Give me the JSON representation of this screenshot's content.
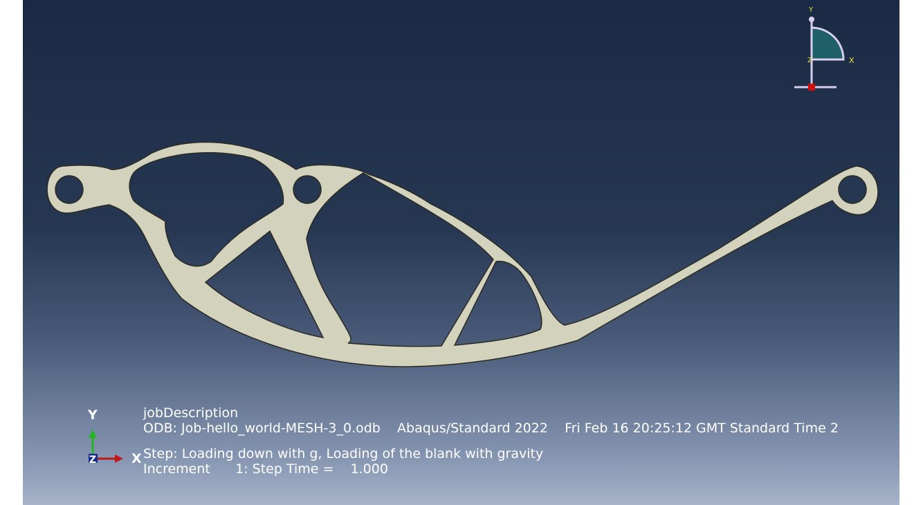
{
  "viewport": {
    "colors": {
      "part_fill": "#d3d2bd",
      "part_edge": "#2a2a22",
      "bg_top": "#1b2a44",
      "bg_bottom": "#a6b3c9"
    }
  },
  "view_cube": {
    "y_label": "Y",
    "x_label": "X",
    "z_label": "Z"
  },
  "triad": {
    "y_label": "Y",
    "x_label": "X",
    "z_label": "Z"
  },
  "legend": {
    "job_description": "jobDescription",
    "odb_line": "ODB: Job-hello_world-MESH-3_0.odb    Abaqus/Standard 2022    Fri Feb 16 20:25:12 GMT Standard Time 2",
    "step_line": "Step: Loading down with g, Loading of the blank with gravity",
    "increment_line": "Increment      1: Step Time =    1.000"
  }
}
